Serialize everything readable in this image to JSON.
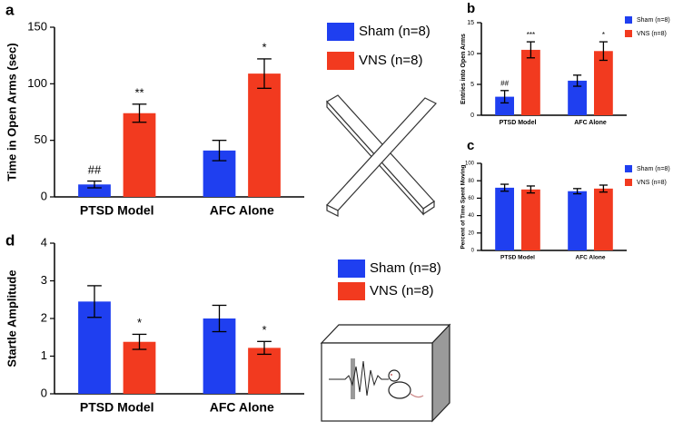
{
  "chart_data": [
    {
      "type": "bar",
      "panel": "a",
      "ylabel": "Time in Open Arms (sec)",
      "categories": [
        "PTSD Model",
        "AFC Alone"
      ],
      "series": [
        {
          "name": "Sham (n=8)",
          "color": "#1f3ff0",
          "values": [
            11,
            41
          ],
          "errors": [
            3,
            9
          ],
          "annotations": [
            "##",
            null
          ]
        },
        {
          "name": "VNS (n=8)",
          "color": "#f23a1f",
          "values": [
            74,
            109
          ],
          "errors": [
            8,
            13
          ],
          "annotations": [
            "**",
            "*"
          ]
        }
      ],
      "ylim": [
        0,
        150
      ],
      "yticks": [
        0,
        50,
        100,
        150
      ],
      "grid": false
    },
    {
      "type": "bar",
      "panel": "b",
      "ylabel": "Entries into Open Arms",
      "categories": [
        "PTSD Model",
        "AFC Alone"
      ],
      "series": [
        {
          "name": "Sham (n=8)",
          "color": "#1f3ff0",
          "values": [
            3.0,
            5.6
          ],
          "errors": [
            1.0,
            0.9
          ],
          "annotations": [
            "##",
            null
          ]
        },
        {
          "name": "VNS (n=8)",
          "color": "#f23a1f",
          "values": [
            10.6,
            10.4
          ],
          "errors": [
            1.3,
            1.5
          ],
          "annotations": [
            "***",
            "*"
          ]
        }
      ],
      "ylim": [
        0,
        15
      ],
      "yticks": [
        0,
        5,
        10,
        15
      ],
      "grid": false
    },
    {
      "type": "bar",
      "panel": "c",
      "ylabel": "Percent of Time Spent Moving",
      "categories": [
        "PTSD Model",
        "AFC Alone"
      ],
      "series": [
        {
          "name": "Sham (n=8)",
          "color": "#1f3ff0",
          "values": [
            72,
            68
          ],
          "errors": [
            4,
            3
          ]
        },
        {
          "name": "VNS (n=8)",
          "color": "#f23a1f",
          "values": [
            70,
            71
          ],
          "errors": [
            4,
            4
          ]
        }
      ],
      "ylim": [
        0,
        100
      ],
      "yticks": [
        0,
        20,
        40,
        60,
        80,
        100
      ],
      "grid": false
    },
    {
      "type": "bar",
      "panel": "d",
      "ylabel": "Startle Amplitude",
      "categories": [
        "PTSD Model",
        "AFC Alone"
      ],
      "series": [
        {
          "name": "Sham (n=8)",
          "color": "#1f3ff0",
          "values": [
            2.45,
            2.0
          ],
          "errors": [
            0.42,
            0.35
          ]
        },
        {
          "name": "VNS (n=8)",
          "color": "#f23a1f",
          "values": [
            1.38,
            1.22
          ],
          "errors": [
            0.2,
            0.17
          ],
          "annotations": [
            "*",
            "*"
          ]
        }
      ],
      "ylim": [
        0,
        4
      ],
      "yticks": [
        0,
        1,
        2,
        3,
        4
      ],
      "grid": false
    }
  ]
}
